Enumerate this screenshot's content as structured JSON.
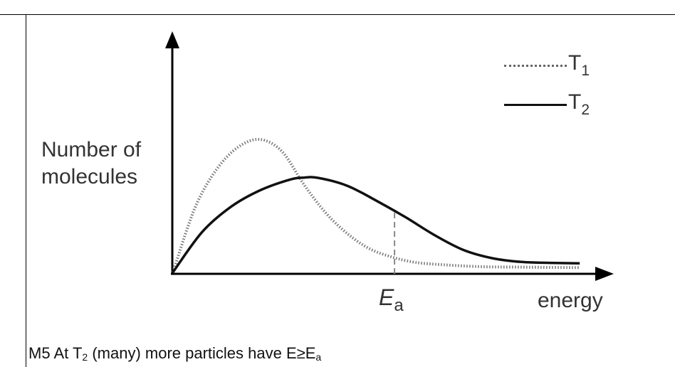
{
  "chart_data": {
    "type": "line",
    "ylabel_lines": [
      "Number of",
      "molecules"
    ],
    "xlabel": "energy",
    "marker": {
      "symbol": "E",
      "subscript": "a",
      "x": 6.1
    },
    "series": [
      {
        "name_base": "T",
        "name_sub": "1",
        "style": "dotted",
        "color": "#777777",
        "x": [
          0,
          0.6,
          1.2,
          1.8,
          2.4,
          3.0,
          3.6,
          4.2,
          4.8,
          5.4,
          6.0,
          6.6,
          7.2,
          8.4,
          9.6,
          11.2
        ],
        "y": [
          0.2,
          43,
          69,
          84,
          89,
          81,
          59,
          40,
          26,
          16,
          10.5,
          7,
          5.5,
          3.9,
          3.5,
          3.2
        ]
      },
      {
        "name_base": "T",
        "name_sub": "2",
        "style": "solid",
        "color": "#111111",
        "x": [
          0,
          0.8,
          1.6,
          2.4,
          3.2,
          3.6,
          4.0,
          4.8,
          5.6,
          6.4,
          7.2,
          8.0,
          8.8,
          9.6,
          10.4,
          11.2
        ],
        "y": [
          0.2,
          27,
          44,
          55,
          62,
          63.5,
          63.3,
          58,
          48,
          37,
          25,
          15,
          9.5,
          7,
          6.4,
          6.1
        ]
      }
    ],
    "xlim": [
      0,
      12
    ],
    "ylim": [
      0,
      100
    ],
    "grid": false,
    "legend": "top-right"
  },
  "caption": {
    "prefix": "M5 At T",
    "sub1": "2",
    "middle": " (many) more particles have E≥E",
    "sub2": "a"
  }
}
